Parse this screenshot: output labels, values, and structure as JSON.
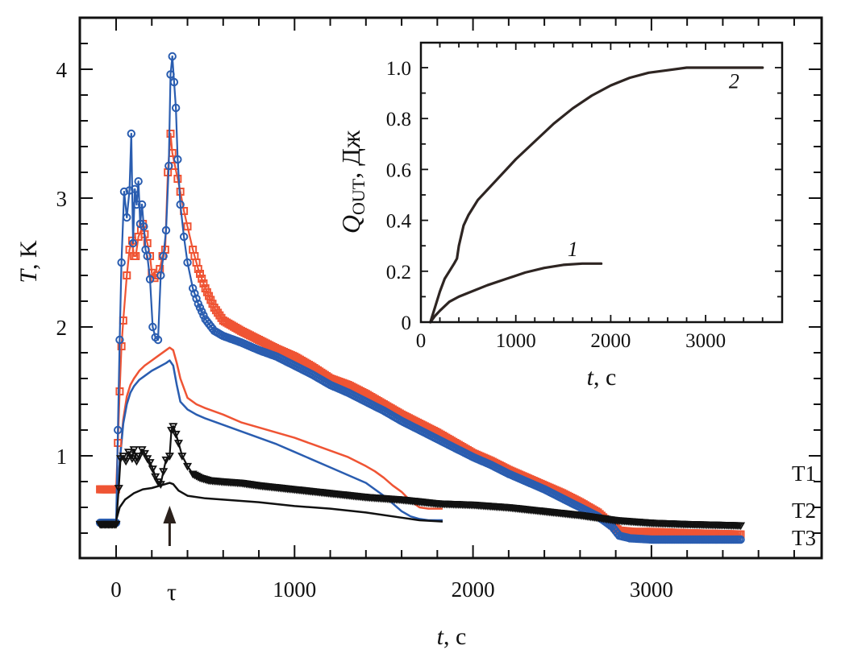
{
  "chart_data": [
    {
      "id": "main",
      "type": "line",
      "xlabel_var": "t",
      "xlabel_unit": ", c",
      "ylabel_var": "T",
      "ylabel_unit": ", K",
      "xlim": [
        -200,
        3950
      ],
      "ylim": [
        0.2,
        4.3
      ],
      "xticks": [
        0,
        1000,
        2000,
        3000
      ],
      "xtick_labels": [
        "0",
        "1000",
        "2000",
        "3000"
      ],
      "yticks": [
        1,
        2,
        3,
        4
      ],
      "ytick_labels": [
        "1",
        "2",
        "3",
        "4"
      ],
      "tau_label": "τ",
      "tau_value": 300,
      "right_labels": [
        {
          "text": "T1",
          "y": 0.87
        },
        {
          "text": "T2",
          "y": 0.58
        },
        {
          "text": "T3",
          "y": 0.37
        }
      ],
      "colors": {
        "red": "#ef5434",
        "blue": "#2a5db0",
        "black": "#111111",
        "arrow": "#2b211c"
      },
      "series": [
        {
          "name": "T2 (markers)",
          "color": "red",
          "marker": "square",
          "x": [
            -90,
            -20,
            0,
            10,
            20,
            30,
            40,
            60,
            75,
            90,
            100,
            110,
            125,
            140,
            150,
            160,
            175,
            190,
            200,
            215,
            230,
            245,
            260,
            275,
            290,
            305,
            315,
            330,
            345,
            360,
            380,
            400,
            430,
            460,
            500,
            550,
            600,
            700,
            800,
            900,
            1000,
            1100,
            1200,
            1300,
            1400,
            1500,
            1600,
            1700,
            1800,
            1900,
            2000,
            2100,
            2200,
            2300,
            2400,
            2500,
            2600,
            2700,
            2780,
            2820,
            2900,
            3000,
            3200,
            3500
          ],
          "y": [
            0.74,
            0.74,
            0.74,
            1.1,
            1.5,
            1.85,
            2.05,
            2.4,
            2.6,
            2.67,
            2.55,
            2.55,
            2.7,
            2.75,
            2.8,
            2.72,
            2.65,
            2.55,
            2.42,
            2.38,
            2.4,
            2.45,
            2.55,
            2.6,
            3.2,
            3.5,
            3.35,
            3.25,
            3.15,
            3.05,
            2.9,
            2.78,
            2.6,
            2.45,
            2.3,
            2.15,
            2.05,
            1.97,
            1.9,
            1.83,
            1.77,
            1.69,
            1.6,
            1.55,
            1.48,
            1.4,
            1.32,
            1.25,
            1.18,
            1.1,
            1.02,
            0.96,
            0.89,
            0.83,
            0.77,
            0.71,
            0.64,
            0.56,
            0.46,
            0.42,
            0.41,
            0.41,
            0.4,
            0.39
          ]
        },
        {
          "name": "T1 (markers)",
          "color": "blue",
          "marker": "circle",
          "x": [
            -90,
            -20,
            0,
            10,
            20,
            30,
            45,
            60,
            75,
            85,
            95,
            105,
            115,
            125,
            135,
            145,
            155,
            165,
            175,
            190,
            205,
            220,
            235,
            250,
            265,
            280,
            295,
            305,
            315,
            325,
            335,
            345,
            360,
            380,
            400,
            430,
            460,
            500,
            550,
            600,
            700,
            800,
            900,
            1000,
            1100,
            1200,
            1300,
            1400,
            1500,
            1600,
            1700,
            1800,
            1900,
            2000,
            2100,
            2200,
            2300,
            2400,
            2500,
            2600,
            2700,
            2780,
            2820,
            2880,
            3000,
            3200,
            3500
          ],
          "y": [
            0.48,
            0.48,
            0.48,
            1.2,
            1.9,
            2.5,
            3.05,
            2.85,
            3.06,
            3.5,
            2.65,
            3.07,
            2.95,
            3.13,
            2.8,
            2.95,
            2.78,
            2.6,
            2.55,
            2.37,
            2.0,
            1.92,
            1.9,
            2.4,
            2.55,
            2.75,
            3.25,
            3.96,
            4.1,
            3.9,
            3.7,
            3.3,
            2.95,
            2.7,
            2.5,
            2.3,
            2.18,
            2.06,
            1.97,
            1.93,
            1.88,
            1.82,
            1.77,
            1.7,
            1.63,
            1.55,
            1.49,
            1.42,
            1.35,
            1.27,
            1.2,
            1.13,
            1.06,
            0.99,
            0.93,
            0.86,
            0.8,
            0.74,
            0.67,
            0.6,
            0.53,
            0.45,
            0.38,
            0.36,
            0.35,
            0.35,
            0.35
          ]
        },
        {
          "name": "T3 (markers)",
          "color": "black",
          "marker": "triangle-down",
          "x": [
            -90,
            -20,
            0,
            15,
            25,
            40,
            55,
            70,
            80,
            90,
            100,
            115,
            130,
            145,
            160,
            175,
            190,
            205,
            220,
            235,
            250,
            265,
            280,
            300,
            310,
            320,
            335,
            350,
            370,
            400,
            430,
            470,
            520,
            600,
            700,
            800,
            1000,
            1200,
            1400,
            1600,
            1800,
            2000,
            2200,
            2400,
            2600,
            2800,
            3000,
            3200,
            3500
          ],
          "y": [
            0.47,
            0.47,
            0.47,
            0.75,
            0.98,
            1.0,
            0.96,
            1.03,
            1.01,
            0.98,
            1.05,
            0.96,
            1.0,
            1.05,
            1.02,
            0.98,
            0.95,
            0.9,
            0.84,
            0.8,
            0.78,
            0.88,
            0.97,
            1.0,
            1.2,
            1.23,
            1.17,
            1.1,
            1.0,
            0.92,
            0.86,
            0.83,
            0.81,
            0.8,
            0.79,
            0.77,
            0.74,
            0.71,
            0.68,
            0.66,
            0.63,
            0.62,
            0.6,
            0.57,
            0.54,
            0.5,
            0.48,
            0.47,
            0.46
          ]
        },
        {
          "name": "T2 (line)",
          "color": "red",
          "marker": "none",
          "x": [
            0,
            20,
            40,
            60,
            80,
            100,
            130,
            160,
            200,
            240,
            280,
            300,
            320,
            340,
            360,
            400,
            450,
            500,
            600,
            700,
            800,
            900,
            1000,
            1100,
            1200,
            1300,
            1400,
            1450,
            1500,
            1550,
            1600,
            1650,
            1700,
            1750,
            1830
          ],
          "y": [
            0.48,
            0.95,
            1.28,
            1.46,
            1.55,
            1.6,
            1.66,
            1.7,
            1.74,
            1.78,
            1.82,
            1.84,
            1.82,
            1.72,
            1.6,
            1.45,
            1.4,
            1.37,
            1.32,
            1.26,
            1.22,
            1.18,
            1.14,
            1.09,
            1.04,
            0.99,
            0.92,
            0.88,
            0.83,
            0.77,
            0.72,
            0.65,
            0.6,
            0.59,
            0.59
          ]
        },
        {
          "name": "T1 (line)",
          "color": "blue",
          "marker": "none",
          "x": [
            0,
            20,
            40,
            60,
            80,
            100,
            130,
            160,
            200,
            240,
            280,
            300,
            320,
            340,
            360,
            400,
            450,
            500,
            600,
            700,
            800,
            900,
            1000,
            1100,
            1200,
            1300,
            1400,
            1450,
            1500,
            1550,
            1600,
            1650,
            1700,
            1750,
            1830
          ],
          "y": [
            0.48,
            0.95,
            1.25,
            1.4,
            1.49,
            1.54,
            1.59,
            1.62,
            1.66,
            1.69,
            1.72,
            1.74,
            1.7,
            1.55,
            1.42,
            1.36,
            1.32,
            1.29,
            1.24,
            1.19,
            1.14,
            1.09,
            1.03,
            0.97,
            0.91,
            0.85,
            0.79,
            0.74,
            0.69,
            0.63,
            0.57,
            0.53,
            0.51,
            0.5,
            0.5
          ]
        },
        {
          "name": "T3 (line)",
          "color": "black",
          "marker": "none",
          "x": [
            0,
            20,
            50,
            100,
            150,
            200,
            250,
            300,
            320,
            350,
            400,
            500,
            600,
            800,
            1000,
            1200,
            1400,
            1600,
            1700,
            1830
          ],
          "y": [
            0.5,
            0.6,
            0.66,
            0.71,
            0.74,
            0.75,
            0.77,
            0.79,
            0.78,
            0.73,
            0.69,
            0.67,
            0.66,
            0.64,
            0.61,
            0.59,
            0.56,
            0.52,
            0.5,
            0.49
          ]
        }
      ]
    },
    {
      "id": "inset",
      "type": "line",
      "xlabel_var": "t",
      "xlabel_unit": ", c",
      "ylabel_var": "Q",
      "ylabel_sub": "OUT",
      "ylabel_unit": ", Дж",
      "xlim": [
        0,
        3800
      ],
      "ylim": [
        0,
        1.1
      ],
      "xticks": [
        0,
        1000,
        2000,
        3000
      ],
      "xtick_labels": [
        "0",
        "1000",
        "2000",
        "3000"
      ],
      "yticks": [
        0,
        0.2,
        0.4,
        0.6,
        0.8,
        1.0
      ],
      "ytick_labels": [
        "0",
        "0.2",
        "0.4",
        "0.6",
        "0.8",
        "1.0"
      ],
      "series": [
        {
          "name": "1",
          "label": "1",
          "label_x": 1600,
          "label_y": 0.26,
          "x": [
            100,
            150,
            200,
            300,
            400,
            500,
            700,
            900,
            1100,
            1300,
            1500,
            1700,
            1900
          ],
          "y": [
            0,
            0.025,
            0.045,
            0.08,
            0.1,
            0.115,
            0.145,
            0.17,
            0.195,
            0.213,
            0.225,
            0.23,
            0.23
          ]
        },
        {
          "name": "2",
          "label": "2",
          "label_x": 3300,
          "label_y": 0.92,
          "x": [
            100,
            150,
            200,
            250,
            300,
            350,
            380,
            400,
            450,
            500,
            600,
            700,
            800,
            1000,
            1200,
            1400,
            1600,
            1800,
            2000,
            2200,
            2400,
            2600,
            2800,
            3000,
            3200,
            3400,
            3600
          ],
          "y": [
            0,
            0.06,
            0.12,
            0.17,
            0.2,
            0.23,
            0.25,
            0.3,
            0.38,
            0.42,
            0.48,
            0.52,
            0.56,
            0.64,
            0.71,
            0.78,
            0.84,
            0.89,
            0.93,
            0.96,
            0.98,
            0.99,
            1.0,
            1.0,
            1.0,
            1.0,
            1.0
          ]
        }
      ]
    }
  ]
}
